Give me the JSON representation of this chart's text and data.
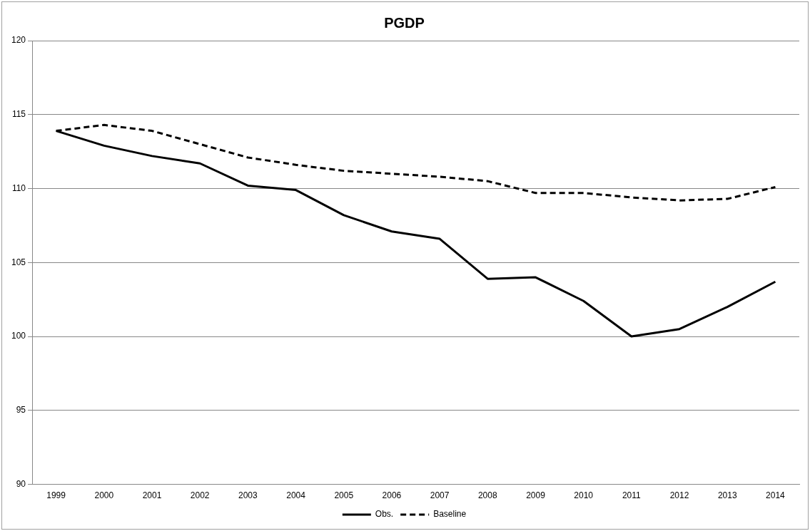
{
  "chart_data": {
    "type": "line",
    "title": "PGDP",
    "categories": [
      "1999",
      "2000",
      "2001",
      "2002",
      "2003",
      "2004",
      "2005",
      "2006",
      "2007",
      "2008",
      "2009",
      "2010",
      "2011",
      "2012",
      "2013",
      "2014"
    ],
    "series": [
      {
        "name": "Obs.",
        "color": "#000000",
        "line_style": "solid",
        "values": [
          113.9,
          112.9,
          112.2,
          111.7,
          110.2,
          109.9,
          108.2,
          107.1,
          106.6,
          103.9,
          104.0,
          102.4,
          100.0,
          100.5,
          102.0,
          103.7
        ]
      },
      {
        "name": "Baseline",
        "color": "#000000",
        "line_style": "dashed",
        "values": [
          113.9,
          114.3,
          113.9,
          113.0,
          112.1,
          111.6,
          111.2,
          111.0,
          110.8,
          110.5,
          109.7,
          109.7,
          109.4,
          109.2,
          109.3,
          110.1
        ]
      }
    ],
    "ylim": [
      90,
      120
    ],
    "yticks": [
      90,
      95,
      100,
      105,
      110,
      115,
      120
    ],
    "grid": "y",
    "legend": "bottom",
    "marker": "none"
  }
}
